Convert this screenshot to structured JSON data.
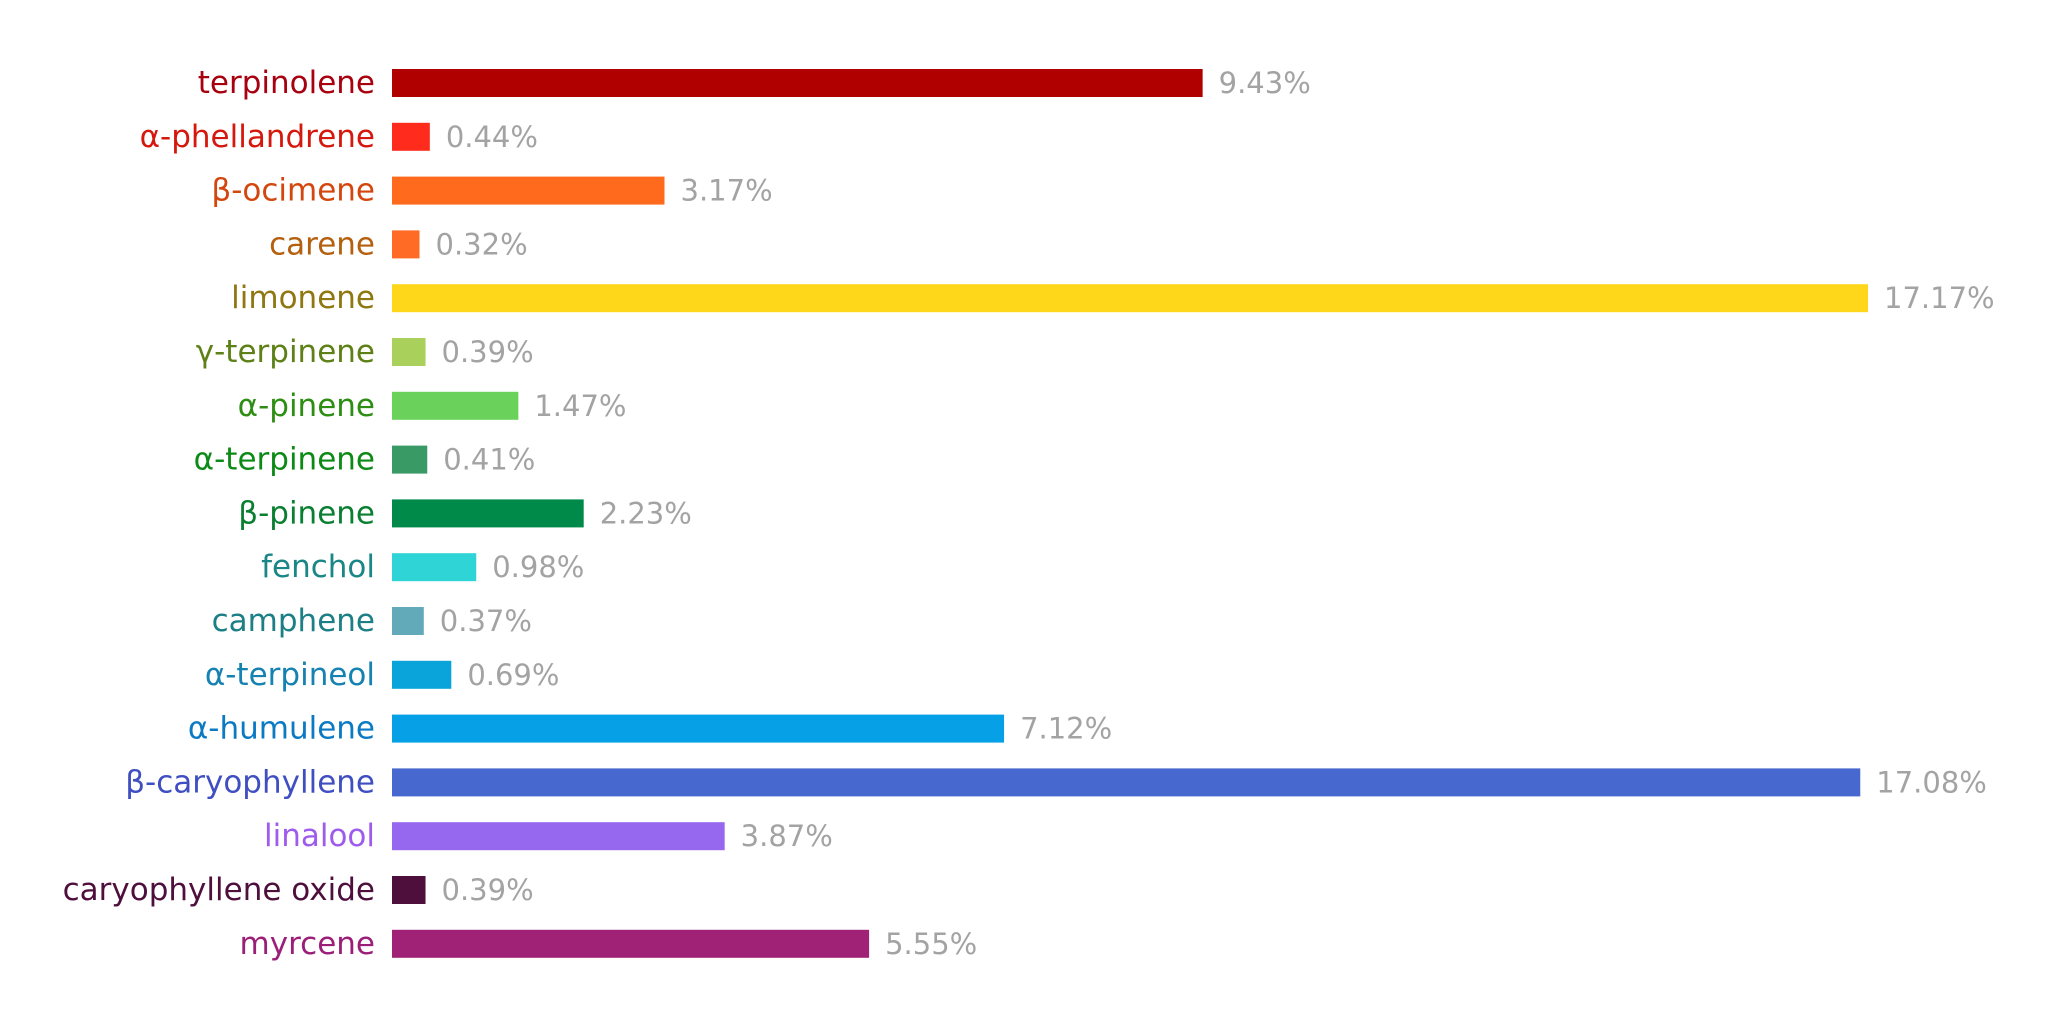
{
  "chart_data": {
    "type": "bar",
    "orientation": "horizontal",
    "title": "",
    "xlabel": "",
    "ylabel": "",
    "xlim": [
      0,
      17.17
    ],
    "grid": false,
    "legend": "none",
    "value_suffix": "%",
    "categories": [
      "terpinolene",
      "α-phellandrene",
      "β-ocimene",
      "carene",
      "limonene",
      "γ-terpinene",
      "α-pinene",
      "α-terpinene",
      "β-pinene",
      "fenchol",
      "camphene",
      "α-terpineol",
      "α-humulene",
      "β-caryophyllene",
      "linalool",
      "caryophyllene oxide",
      "myrcene"
    ],
    "values": [
      9.43,
      0.44,
      3.17,
      0.32,
      17.17,
      0.39,
      1.47,
      0.41,
      2.23,
      0.98,
      0.37,
      0.69,
      7.12,
      17.08,
      3.87,
      0.39,
      5.55
    ],
    "value_labels": [
      "9.43%",
      "0.44%",
      "3.17%",
      "0.32%",
      "17.17%",
      "0.39%",
      "1.47%",
      "0.41%",
      "2.23%",
      "0.98%",
      "0.37%",
      "0.69%",
      "7.12%",
      "17.08%",
      "3.87%",
      "0.39%",
      "5.55%"
    ],
    "bar_colors": [
      "#b10000",
      "#ff2b1c",
      "#ff6a1c",
      "#ff6a24",
      "#fed71b",
      "#a8d05a",
      "#6ad25b",
      "#3a9a66",
      "#008a4a",
      "#2fd4d6",
      "#62a9ba",
      "#0aa4da",
      "#05a0e6",
      "#4768cf",
      "#9668f0",
      "#4e0f3d",
      "#a02276"
    ],
    "label_colors": [
      "#a8000e",
      "#d5180e",
      "#d3470e",
      "#b4600f",
      "#8f7711",
      "#5d8116",
      "#2e8e13",
      "#0c8a16",
      "#0a7e31",
      "#1a8686",
      "#1c7f86",
      "#1682b1",
      "#0b7ac3",
      "#3f4fc1",
      "#9e5ced",
      "#4e0f3d",
      "#9b1f78"
    ]
  }
}
